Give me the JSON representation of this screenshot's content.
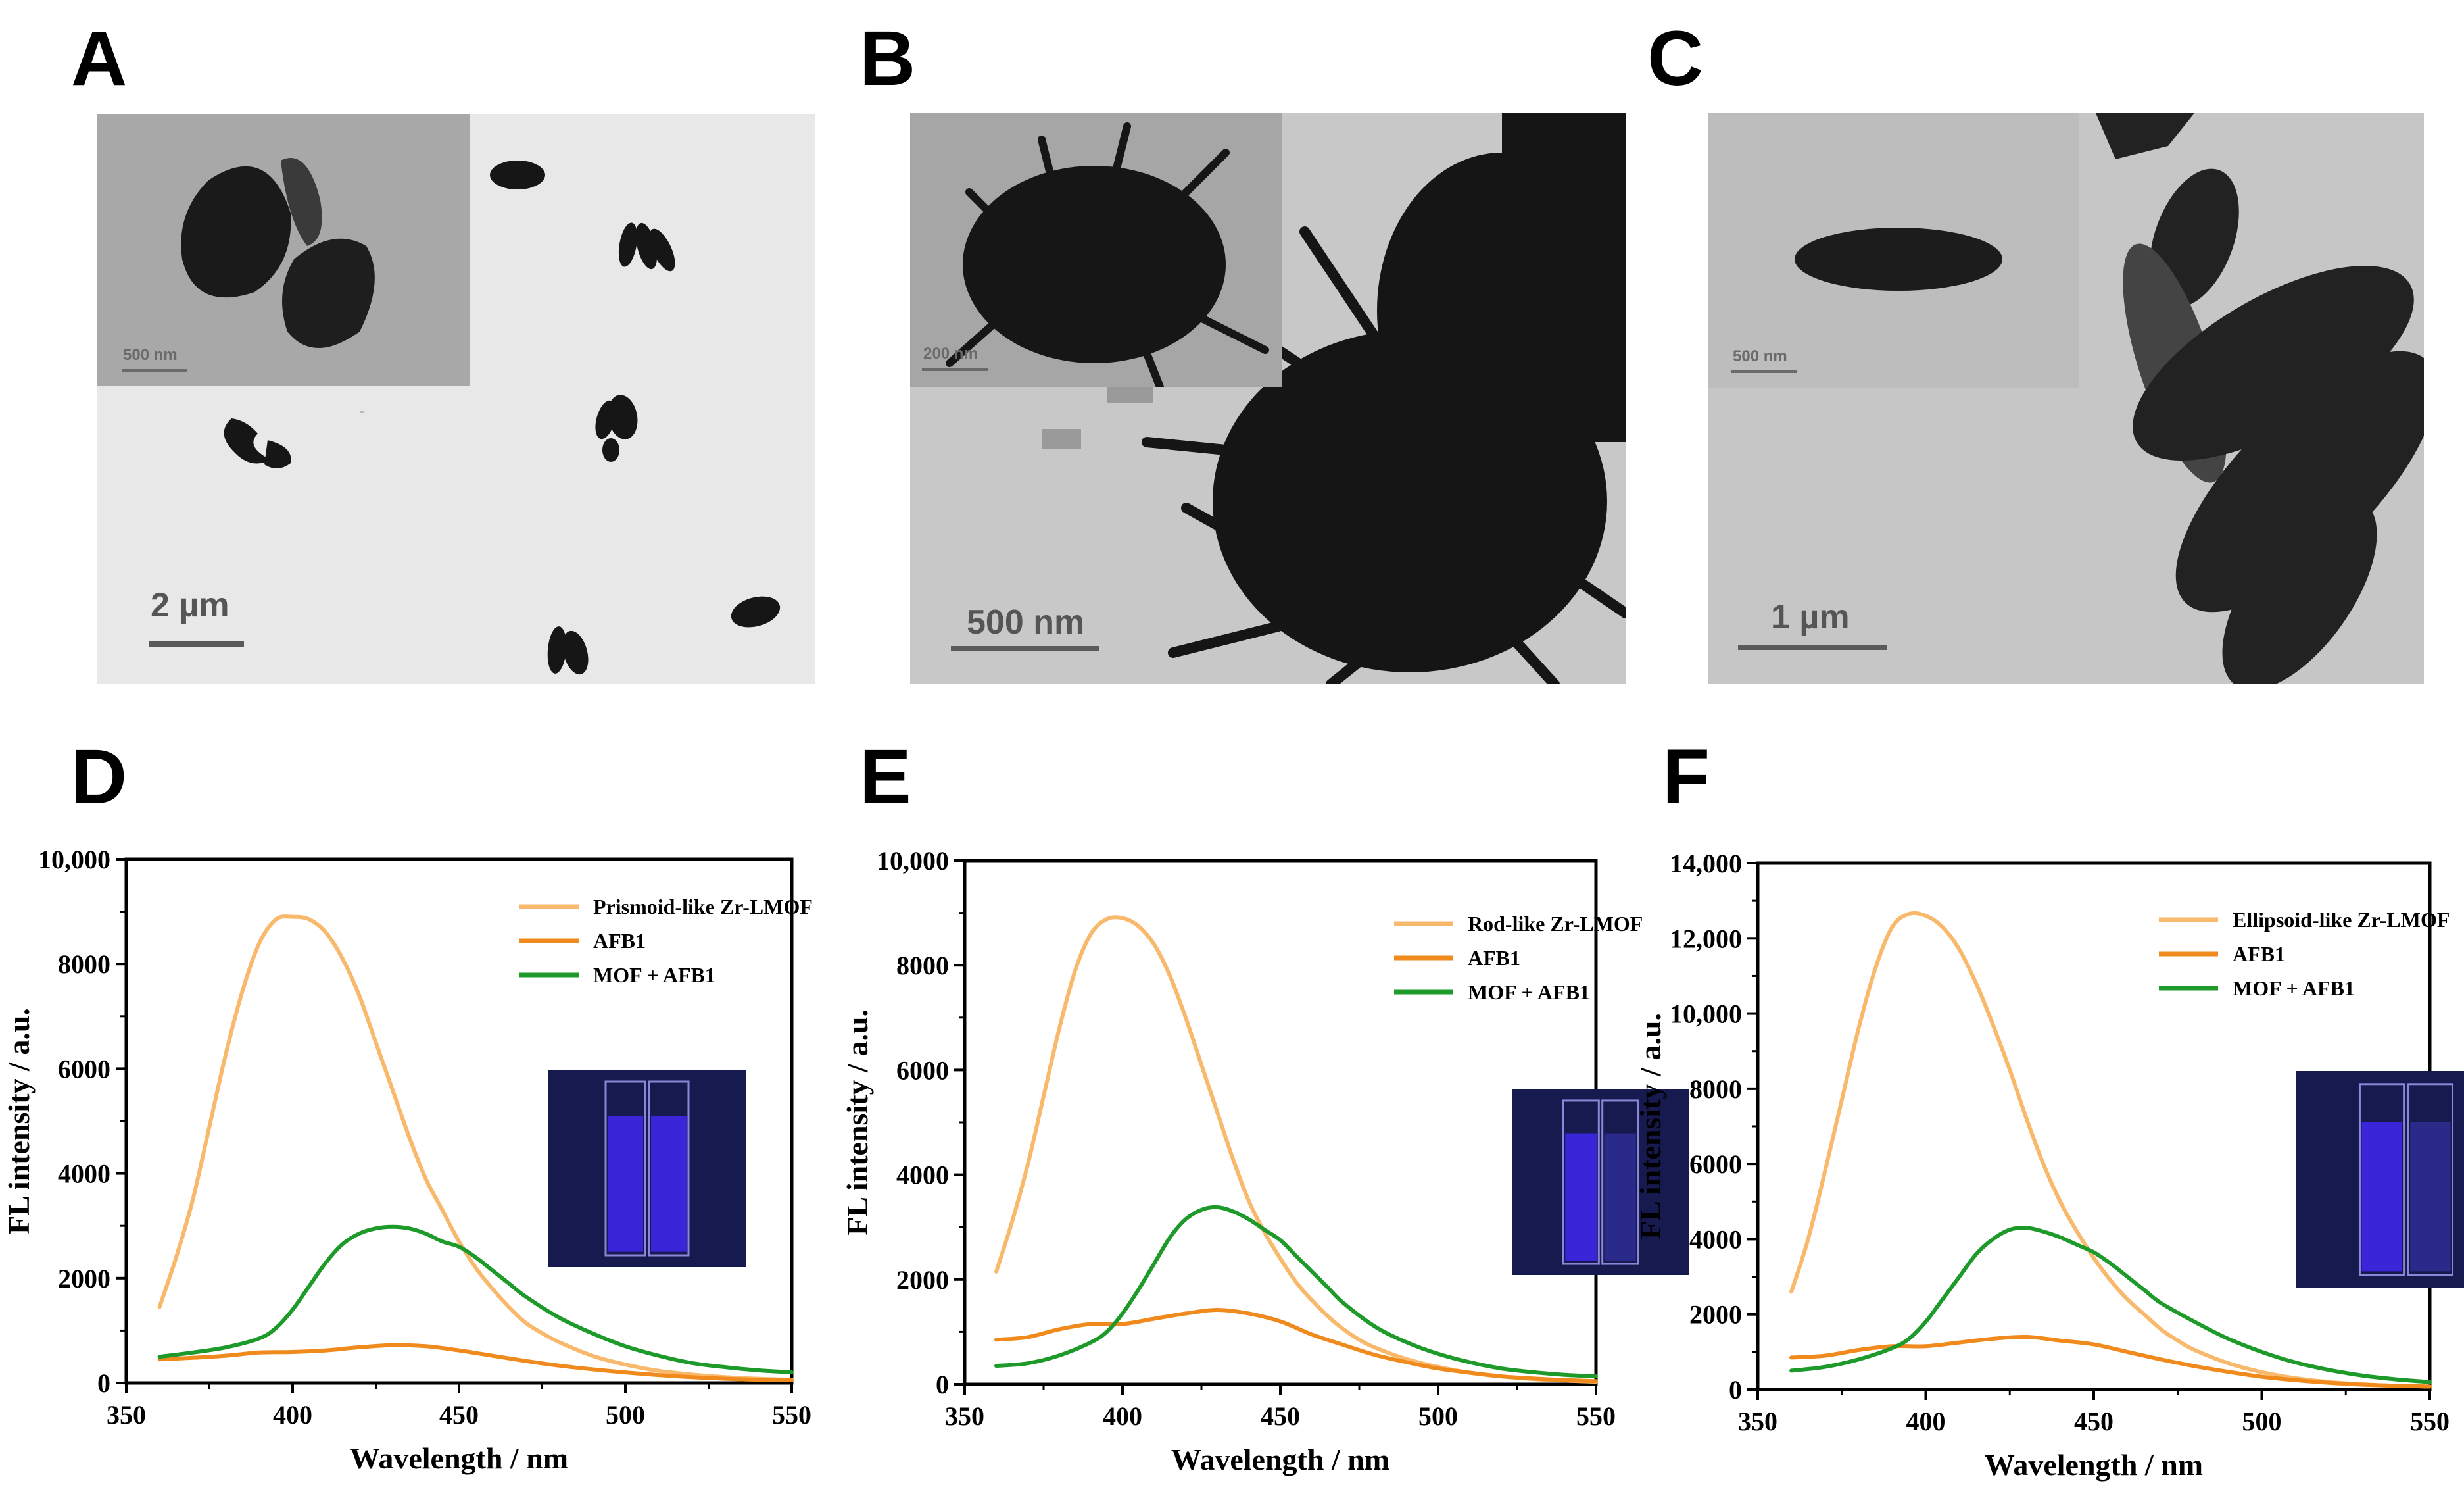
{
  "panel_letters": [
    "A",
    "B",
    "C",
    "D",
    "E",
    "F"
  ],
  "tem_panels": [
    {
      "panel": "A",
      "scale_label": "2 µm",
      "inset_scale_label": "500 nm",
      "description": "Prismoid-like particles"
    },
    {
      "panel": "B",
      "scale_label": "500 nm",
      "inset_scale_label": "200 nm",
      "description": "Rod-like spiky aggregates"
    },
    {
      "panel": "C",
      "scale_label": "1 µm",
      "inset_scale_label": "500 nm",
      "description": "Ellipsoid-like particles"
    }
  ],
  "colors": {
    "mof": "#f9b96c",
    "afb1": "#f08a1c",
    "mof_afb1": "#1e9a2a",
    "cuvette_bg": "#161a4e",
    "cuvette_bright": "#3a25d8",
    "cuvette_dim": "#2a2a8a"
  },
  "chart_data": [
    {
      "panel": "D",
      "type": "line",
      "xlabel": "Wavelength / nm",
      "ylabel": "FL intensity / a.u.",
      "xlim": [
        350,
        550
      ],
      "ylim": [
        0,
        10000
      ],
      "xticks": [
        350,
        400,
        450,
        500,
        550
      ],
      "yticks": [
        0,
        2000,
        4000,
        6000,
        8000,
        10000
      ],
      "ytick_labels": [
        "0",
        "2000",
        "4000",
        "6000",
        "8000",
        "10,000"
      ],
      "legend_position": "top-right",
      "series": [
        {
          "name": "Prismoid-like Zr-LMOF",
          "color_key": "mof",
          "x": [
            360,
            365,
            370,
            375,
            380,
            385,
            390,
            395,
            400,
            405,
            410,
            415,
            420,
            425,
            430,
            435,
            440,
            445,
            450,
            455,
            460,
            465,
            470,
            475,
            480,
            490,
            500,
            510,
            520,
            530,
            540,
            550
          ],
          "y": [
            1450,
            2400,
            3500,
            4900,
            6300,
            7500,
            8400,
            8850,
            8900,
            8850,
            8600,
            8100,
            7400,
            6500,
            5600,
            4700,
            3900,
            3300,
            2700,
            2200,
            1800,
            1450,
            1150,
            950,
            780,
            520,
            350,
            230,
            160,
            110,
            80,
            60
          ]
        },
        {
          "name": "AFB1",
          "color_key": "afb1",
          "x": [
            360,
            370,
            380,
            390,
            400,
            410,
            420,
            430,
            440,
            450,
            460,
            470,
            480,
            490,
            500,
            510,
            520,
            530,
            540,
            550
          ],
          "y": [
            450,
            480,
            520,
            580,
            590,
            620,
            680,
            720,
            700,
            620,
            520,
            420,
            330,
            260,
            200,
            150,
            110,
            80,
            60,
            50
          ]
        },
        {
          "name": "MOF + AFB1",
          "color_key": "mof_afb1",
          "x": [
            360,
            370,
            380,
            390,
            395,
            400,
            405,
            410,
            415,
            420,
            425,
            430,
            435,
            440,
            445,
            450,
            455,
            460,
            465,
            470,
            480,
            490,
            500,
            510,
            520,
            530,
            540,
            550
          ],
          "y": [
            500,
            580,
            680,
            850,
            1050,
            1400,
            1850,
            2300,
            2650,
            2850,
            2950,
            2980,
            2950,
            2850,
            2700,
            2600,
            2400,
            2150,
            1900,
            1650,
            1250,
            950,
            700,
            520,
            380,
            300,
            240,
            200
          ]
        }
      ]
    },
    {
      "panel": "E",
      "type": "line",
      "xlabel": "Wavelength / nm",
      "ylabel": "FL intensity / a.u.",
      "xlim": [
        350,
        550
      ],
      "ylim": [
        0,
        10000
      ],
      "xticks": [
        350,
        400,
        450,
        500,
        550
      ],
      "yticks": [
        0,
        2000,
        4000,
        6000,
        8000,
        10000
      ],
      "ytick_labels": [
        "0",
        "2000",
        "4000",
        "6000",
        "8000",
        "10,000"
      ],
      "legend_position": "top-right",
      "series": [
        {
          "name": "Rod-like Zr-LMOF",
          "color_key": "mof",
          "x": [
            360,
            365,
            370,
            375,
            380,
            385,
            390,
            395,
            400,
            405,
            410,
            415,
            420,
            425,
            430,
            435,
            440,
            445,
            450,
            455,
            460,
            465,
            470,
            475,
            480,
            490,
            500,
            510,
            520,
            530,
            540,
            550
          ],
          "y": [
            2150,
            3100,
            4200,
            5500,
            6800,
            7900,
            8600,
            8880,
            8900,
            8750,
            8400,
            7800,
            7000,
            6100,
            5200,
            4300,
            3500,
            2900,
            2400,
            1950,
            1600,
            1300,
            1050,
            850,
            700,
            480,
            330,
            220,
            150,
            100,
            70,
            50
          ]
        },
        {
          "name": "AFB1",
          "color_key": "afb1",
          "x": [
            360,
            370,
            380,
            390,
            400,
            410,
            420,
            430,
            440,
            450,
            460,
            470,
            480,
            490,
            500,
            510,
            520,
            530,
            540,
            550
          ],
          "y": [
            850,
            900,
            1050,
            1150,
            1150,
            1250,
            1350,
            1420,
            1350,
            1200,
            950,
            750,
            560,
            420,
            300,
            220,
            150,
            110,
            80,
            60
          ]
        },
        {
          "name": "MOF + AFB1",
          "color_key": "mof_afb1",
          "x": [
            360,
            370,
            380,
            390,
            395,
            400,
            405,
            410,
            415,
            420,
            425,
            430,
            435,
            440,
            445,
            450,
            455,
            460,
            465,
            470,
            480,
            490,
            500,
            510,
            520,
            530,
            540,
            550
          ],
          "y": [
            350,
            400,
            550,
            800,
            1000,
            1350,
            1800,
            2300,
            2800,
            3150,
            3330,
            3380,
            3300,
            3150,
            2950,
            2750,
            2450,
            2150,
            1850,
            1550,
            1100,
            800,
            580,
            420,
            300,
            230,
            180,
            150
          ]
        }
      ]
    },
    {
      "panel": "F",
      "type": "line",
      "xlabel": "Wavelength / nm",
      "ylabel": "FL intensity / a.u.",
      "xlim": [
        350,
        550
      ],
      "ylim": [
        0,
        14000
      ],
      "xticks": [
        350,
        400,
        450,
        500,
        550
      ],
      "yticks": [
        0,
        2000,
        4000,
        6000,
        8000,
        10000,
        12000,
        14000
      ],
      "ytick_labels": [
        "0",
        "2000",
        "4000",
        "6000",
        "8000",
        "10,000",
        "12,000",
        "14,000"
      ],
      "legend_position": "top-right",
      "series": [
        {
          "name": "Ellipsoid-like Zr-LMOF",
          "color_key": "mof",
          "x": [
            360,
            365,
            370,
            375,
            380,
            385,
            390,
            395,
            400,
            405,
            410,
            415,
            420,
            425,
            430,
            435,
            440,
            445,
            450,
            455,
            460,
            465,
            470,
            475,
            480,
            490,
            500,
            510,
            520,
            530,
            540,
            550
          ],
          "y": [
            2600,
            4000,
            5800,
            7700,
            9600,
            11200,
            12300,
            12650,
            12600,
            12300,
            11700,
            10800,
            9700,
            8500,
            7200,
            6000,
            5000,
            4200,
            3500,
            2900,
            2400,
            2000,
            1600,
            1300,
            1050,
            700,
            460,
            300,
            200,
            140,
            100,
            80
          ]
        },
        {
          "name": "AFB1",
          "color_key": "afb1",
          "x": [
            360,
            370,
            380,
            390,
            400,
            410,
            420,
            430,
            440,
            450,
            460,
            470,
            480,
            490,
            500,
            510,
            520,
            530,
            540,
            550
          ],
          "y": [
            850,
            900,
            1050,
            1150,
            1150,
            1250,
            1350,
            1400,
            1300,
            1200,
            1000,
            800,
            620,
            470,
            340,
            250,
            180,
            130,
            100,
            80
          ]
        },
        {
          "name": "MOF + AFB1",
          "color_key": "mof_afb1",
          "x": [
            360,
            370,
            380,
            390,
            395,
            400,
            405,
            410,
            415,
            420,
            425,
            430,
            435,
            440,
            445,
            450,
            455,
            460,
            465,
            470,
            480,
            490,
            500,
            510,
            520,
            530,
            540,
            550
          ],
          "y": [
            500,
            600,
            800,
            1100,
            1350,
            1800,
            2400,
            3000,
            3600,
            4000,
            4250,
            4300,
            4200,
            4050,
            3850,
            3650,
            3350,
            3000,
            2650,
            2300,
            1800,
            1350,
            1000,
            720,
            520,
            370,
            270,
            200
          ]
        }
      ]
    }
  ]
}
